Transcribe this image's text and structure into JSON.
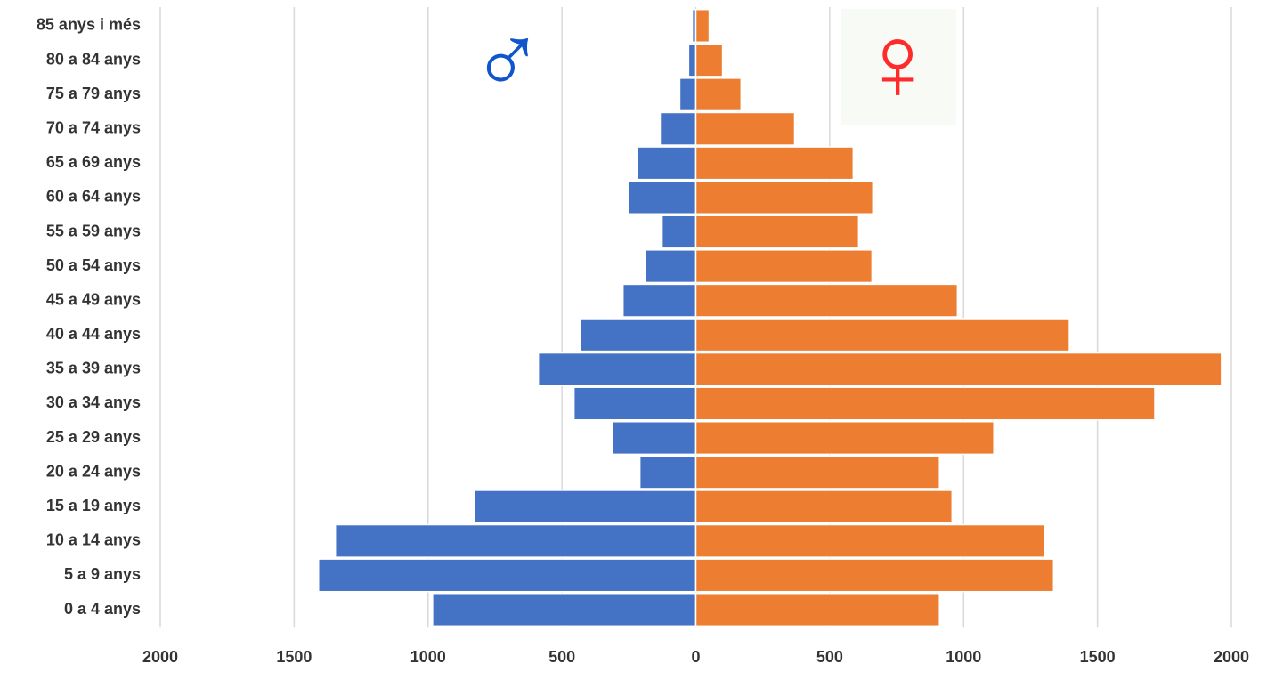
{
  "chart_data": {
    "type": "pyramid",
    "categories": [
      "0 a 4 anys",
      "5 a 9 anys",
      "10 a 14 anys",
      "15 a 19 anys",
      "20 a 24 anys",
      "25 a 29 anys",
      "30 a 34 anys",
      "35 a 39 anys",
      "40 a 44 anys",
      "45 a 49 anys",
      "50 a 54 anys",
      "55 a 59 anys",
      "60 a 64 anys",
      "65 a 69 anys",
      "70 a 74 anys",
      "75 a 79 anys",
      "80 a 84 anys",
      "85 anys i més"
    ],
    "series": [
      {
        "color": "#4472c4",
        "values": [
          -983,
          -1409,
          -1346,
          -827,
          -209,
          -312,
          -455,
          -588,
          -432,
          -272,
          -189,
          -126,
          -252,
          -219,
          -133,
          -60,
          -27,
          -13
        ]
      },
      {
        "color": "#ed7d31",
        "values": [
          910,
          1336,
          1302,
          957,
          910,
          1113,
          1714,
          1963,
          1395,
          977,
          658,
          608,
          661,
          588,
          369,
          169,
          100,
          50
        ]
      }
    ],
    "xlim": [
      -2000,
      2000
    ],
    "xticks": [
      {
        "value": -2000,
        "label": "2000"
      },
      {
        "value": -1500,
        "label": "1500"
      },
      {
        "value": -1000,
        "label": "1000"
      },
      {
        "value": -500,
        "label": "500"
      },
      0,
      500,
      1000,
      1500,
      2000
    ],
    "grid": true,
    "annotations": [
      "♂",
      "♀"
    ]
  }
}
